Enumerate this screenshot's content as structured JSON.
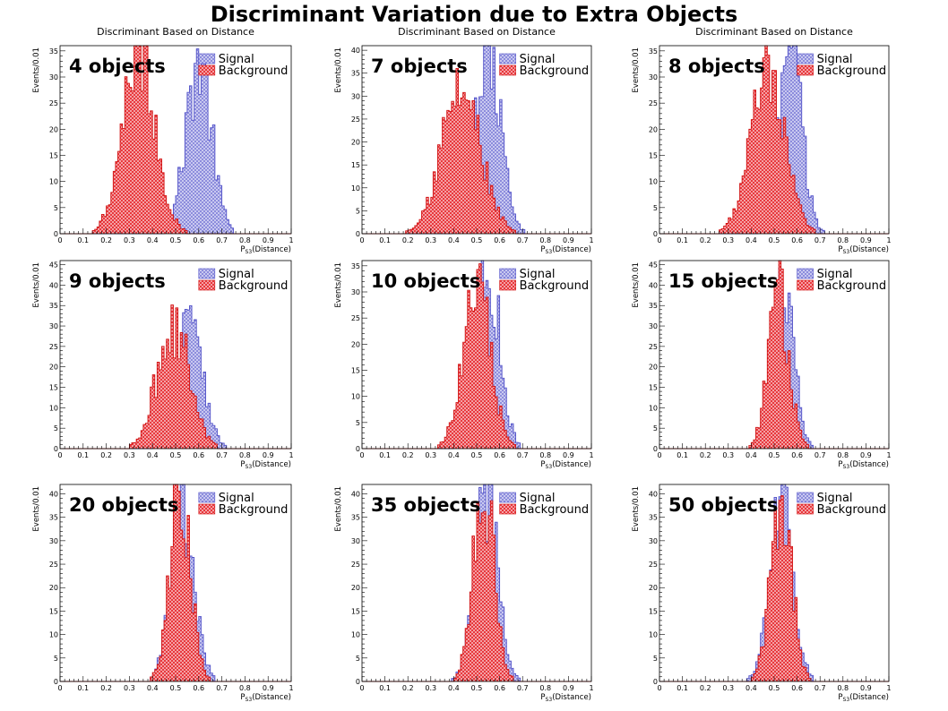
{
  "title": "Discriminant Variation due to Extra Objects",
  "colors": {
    "signal": "#8c8cdc",
    "background": "#e8383c",
    "signal_line": "#5050c8",
    "background_line": "#d01010"
  },
  "chart_data": [
    {
      "type": "bar",
      "subtitle": "Discriminant Based on Distance",
      "label": "4 objects",
      "ylabel": "Events/0.01",
      "xlabel_main": "P",
      "xlabel_sub": "S3",
      "xlabel_tail": "(Distance)",
      "xlim": [
        0,
        1
      ],
      "ylim": [
        0,
        36
      ],
      "yticks": [
        0,
        5,
        10,
        15,
        20,
        25,
        30,
        35
      ],
      "xticks": [
        0,
        0.1,
        0.2,
        0.3,
        0.4,
        0.5,
        0.6,
        0.7,
        0.8,
        0.9,
        1
      ],
      "xtick_labels": [
        "0",
        "0.1",
        "0.2",
        "0.3",
        "0.4",
        "0.5",
        "0.6",
        "0.7",
        "0.8",
        "0.9",
        "1"
      ],
      "legend": [
        "Signal",
        "Background"
      ],
      "legend_position": "top-right",
      "signal": {
        "mean": 0.6,
        "sigma": 0.055,
        "peak": 33
      },
      "background": {
        "mean": 0.34,
        "sigma": 0.07,
        "peak": 36
      }
    },
    {
      "type": "bar",
      "subtitle": "Discriminant Based on Distance",
      "label": "7 objects",
      "ylabel": "Events/0.01",
      "xlabel_main": "P",
      "xlabel_sub": "S3",
      "xlabel_tail": "(Distance)",
      "xlim": [
        0,
        1
      ],
      "ylim": [
        0,
        41
      ],
      "yticks": [
        0,
        5,
        10,
        15,
        20,
        25,
        30,
        35,
        40
      ],
      "xticks": [
        0,
        0.1,
        0.2,
        0.3,
        0.4,
        0.5,
        0.6,
        0.7,
        0.8,
        0.9,
        1
      ],
      "xtick_labels": [
        "0",
        "0.1",
        "0.2",
        "0.3",
        "0.4",
        "0.5",
        "0.6",
        "0.7",
        "0.8",
        "0.9",
        "1"
      ],
      "legend": [
        "Signal",
        "Background"
      ],
      "legend_position": "top-right",
      "signal": {
        "mean": 0.55,
        "sigma": 0.055,
        "peak": 39
      },
      "background": {
        "mean": 0.43,
        "sigma": 0.085,
        "peak": 31
      }
    },
    {
      "type": "bar",
      "subtitle": "Discriminant Based on Distance",
      "label": "8 objects",
      "ylabel": "Events/0.01",
      "xlabel_main": "P",
      "xlabel_sub": "S3",
      "xlabel_tail": "(Distance)",
      "xlim": [
        0,
        1
      ],
      "ylim": [
        0,
        36
      ],
      "yticks": [
        0,
        5,
        10,
        15,
        20,
        25,
        30,
        35
      ],
      "xticks": [
        0,
        0.1,
        0.2,
        0.3,
        0.4,
        0.5,
        0.6,
        0.7,
        0.8,
        0.9,
        1
      ],
      "xtick_labels": [
        "0",
        "0.1",
        "0.2",
        "0.3",
        "0.4",
        "0.5",
        "0.6",
        "0.7",
        "0.8",
        "0.9",
        "1"
      ],
      "legend": [
        "Signal",
        "Background"
      ],
      "legend_position": "top-right",
      "signal": {
        "mean": 0.57,
        "sigma": 0.05,
        "peak": 35
      },
      "background": {
        "mean": 0.47,
        "sigma": 0.075,
        "peak": 29
      }
    },
    {
      "type": "bar",
      "subtitle": "",
      "label": "9 objects",
      "ylabel": "Events/0.01",
      "xlabel_main": "P",
      "xlabel_sub": "S3",
      "xlabel_tail": "(Distance)",
      "xlim": [
        0,
        1
      ],
      "ylim": [
        0,
        46
      ],
      "yticks": [
        0,
        5,
        10,
        15,
        20,
        25,
        30,
        35,
        40,
        45
      ],
      "xticks": [
        0,
        0.1,
        0.2,
        0.3,
        0.4,
        0.5,
        0.6,
        0.7,
        0.8,
        0.9,
        1
      ],
      "xtick_labels": [
        "0",
        "0.1",
        "0.2",
        "0.3",
        "0.4",
        "0.5",
        "0.6",
        "0.7",
        "0.8",
        "0.9",
        "1"
      ],
      "legend": [
        "Signal",
        "Background"
      ],
      "legend_position": "top-right",
      "signal": {
        "mean": 0.56,
        "sigma": 0.055,
        "peak": 36
      },
      "background": {
        "mean": 0.49,
        "sigma": 0.07,
        "peak": 30
      }
    },
    {
      "type": "bar",
      "subtitle": "",
      "label": "10 objects",
      "ylabel": "Events/0.01",
      "xlabel_main": "P",
      "xlabel_sub": "S3",
      "xlabel_tail": "(Distance)",
      "xlim": [
        0,
        1
      ],
      "ylim": [
        0,
        36
      ],
      "yticks": [
        0,
        5,
        10,
        15,
        20,
        25,
        30,
        35
      ],
      "xticks": [
        0,
        0.1,
        0.2,
        0.3,
        0.4,
        0.5,
        0.6,
        0.7,
        0.8,
        0.9,
        1
      ],
      "xtick_labels": [
        "0",
        "0.1",
        "0.2",
        "0.3",
        "0.4",
        "0.5",
        "0.6",
        "0.7",
        "0.8",
        "0.9",
        "1"
      ],
      "legend": [
        "Signal",
        "Background"
      ],
      "legend_position": "top-right",
      "signal": {
        "mean": 0.55,
        "sigma": 0.05,
        "peak": 35
      },
      "background": {
        "mean": 0.5,
        "sigma": 0.06,
        "peak": 30
      }
    },
    {
      "type": "bar",
      "subtitle": "",
      "label": "15 objects",
      "ylabel": "Events/0.01",
      "xlabel_main": "P",
      "xlabel_sub": "S3",
      "xlabel_tail": "(Distance)",
      "xlim": [
        0,
        1
      ],
      "ylim": [
        0,
        46
      ],
      "yticks": [
        0,
        5,
        10,
        15,
        20,
        25,
        30,
        35,
        40,
        45
      ],
      "xticks": [
        0,
        0.1,
        0.2,
        0.3,
        0.4,
        0.5,
        0.6,
        0.7,
        0.8,
        0.9,
        1
      ],
      "xtick_labels": [
        "0",
        "0.1",
        "0.2",
        "0.3",
        "0.4",
        "0.5",
        "0.6",
        "0.7",
        "0.8",
        "0.9",
        "1"
      ],
      "legend": [
        "Signal",
        "Background"
      ],
      "legend_position": "top-right",
      "signal": {
        "mean": 0.54,
        "sigma": 0.045,
        "peak": 40
      },
      "background": {
        "mean": 0.52,
        "sigma": 0.045,
        "peak": 38
      }
    },
    {
      "type": "bar",
      "subtitle": "",
      "label": "20 objects",
      "ylabel": "Events/0.01",
      "xlabel_main": "P",
      "xlabel_sub": "S3",
      "xlabel_tail": "(Distance)",
      "xlim": [
        0,
        1
      ],
      "ylim": [
        0,
        42
      ],
      "yticks": [
        0,
        5,
        10,
        15,
        20,
        25,
        30,
        35,
        40
      ],
      "xticks": [
        0,
        0.1,
        0.2,
        0.3,
        0.4,
        0.5,
        0.6,
        0.7,
        0.8,
        0.9,
        1
      ],
      "xtick_labels": [
        "0",
        "0.1",
        "0.2",
        "0.3",
        "0.4",
        "0.5",
        "0.6",
        "0.7",
        "0.8",
        "0.9",
        "1"
      ],
      "legend": [
        "Signal",
        "Background"
      ],
      "legend_position": "top-right",
      "signal": {
        "mean": 0.53,
        "sigma": 0.05,
        "peak": 38
      },
      "background": {
        "mean": 0.52,
        "sigma": 0.045,
        "peak": 42
      }
    },
    {
      "type": "bar",
      "subtitle": "",
      "label": "35 objects",
      "ylabel": "Events/0.01",
      "xlabel_main": "P",
      "xlabel_sub": "S3",
      "xlabel_tail": "(Distance)",
      "xlim": [
        0,
        1
      ],
      "ylim": [
        0,
        42
      ],
      "yticks": [
        0,
        5,
        10,
        15,
        20,
        25,
        30,
        35,
        40
      ],
      "xticks": [
        0,
        0.1,
        0.2,
        0.3,
        0.4,
        0.5,
        0.6,
        0.7,
        0.8,
        0.9,
        1
      ],
      "xtick_labels": [
        "0",
        "0.1",
        "0.2",
        "0.3",
        "0.4",
        "0.5",
        "0.6",
        "0.7",
        "0.8",
        "0.9",
        "1"
      ],
      "legend": [
        "Signal",
        "Background"
      ],
      "legend_position": "top-right",
      "signal": {
        "mean": 0.54,
        "sigma": 0.05,
        "peak": 40
      },
      "background": {
        "mean": 0.53,
        "sigma": 0.045,
        "peak": 42
      }
    },
    {
      "type": "bar",
      "subtitle": "",
      "label": "50 objects",
      "ylabel": "Events/0.01",
      "xlabel_main": "P",
      "xlabel_sub": "S3",
      "xlabel_tail": "(Distance)",
      "xlim": [
        0,
        1
      ],
      "ylim": [
        0,
        42
      ],
      "yticks": [
        0,
        5,
        10,
        15,
        20,
        25,
        30,
        35,
        40
      ],
      "xticks": [
        0,
        0.1,
        0.2,
        0.3,
        0.4,
        0.5,
        0.6,
        0.7,
        0.8,
        0.9,
        1
      ],
      "xtick_labels": [
        "0",
        "0.1",
        "0.2",
        "0.3",
        "0.4",
        "0.5",
        "0.6",
        "0.7",
        "0.8",
        "0.9",
        "1"
      ],
      "legend": [
        "Signal",
        "Background"
      ],
      "legend_position": "top-right",
      "signal": {
        "mean": 0.53,
        "sigma": 0.05,
        "peak": 40
      },
      "background": {
        "mean": 0.53,
        "sigma": 0.045,
        "peak": 41
      }
    }
  ]
}
